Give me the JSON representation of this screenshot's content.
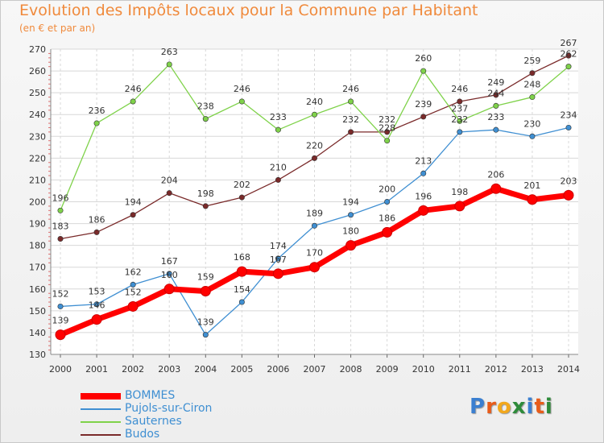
{
  "header": {
    "title": "Evolution des Impôts locaux pour la Commune par Habitant",
    "subtitle": "(en € et par an)"
  },
  "logo": {
    "letters": [
      "P",
      "r",
      "o",
      "x",
      "i",
      "t",
      "i"
    ],
    "colors": [
      "#3b7fd0",
      "#e85c1a",
      "#f2a81d",
      "#2e8b3a",
      "#3b7fd0",
      "#e85c1a",
      "#2e8b3a"
    ]
  },
  "chart_data": {
    "type": "line",
    "title": "Evolution des Impôts locaux pour la Commune par Habitant",
    "xlabel": "",
    "ylabel": "",
    "categories": [
      "2000",
      "2001",
      "2002",
      "2003",
      "2004",
      "2005",
      "2006",
      "2007",
      "2008",
      "2009",
      "2010",
      "2011",
      "2012",
      "2013",
      "2014"
    ],
    "ylim": [
      130,
      270
    ],
    "yticks": [
      130,
      140,
      150,
      160,
      170,
      180,
      190,
      200,
      210,
      220,
      230,
      240,
      250,
      260,
      270
    ],
    "grid": true,
    "legend_position": "bottom-left",
    "series": [
      {
        "name": "BOMMES",
        "color": "#ff0000",
        "values": [
          139,
          146,
          152,
          160,
          159,
          168,
          167,
          170,
          180,
          186,
          196,
          198,
          206,
          201,
          203
        ]
      },
      {
        "name": "Pujols-sur-Ciron",
        "color": "#3f8fd2",
        "values": [
          152,
          153,
          162,
          167,
          139,
          154,
          174,
          189,
          194,
          200,
          213,
          232,
          233,
          230,
          234
        ]
      },
      {
        "name": "Sauternes",
        "color": "#7fd24a",
        "values": [
          196,
          236,
          246,
          263,
          238,
          246,
          233,
          240,
          246,
          228,
          260,
          237,
          244,
          248,
          262
        ]
      },
      {
        "name": "Budos",
        "color": "#7a2a2a",
        "values": [
          183,
          186,
          194,
          204,
          198,
          202,
          210,
          220,
          232,
          232,
          239,
          246,
          249,
          259,
          267
        ]
      }
    ]
  }
}
